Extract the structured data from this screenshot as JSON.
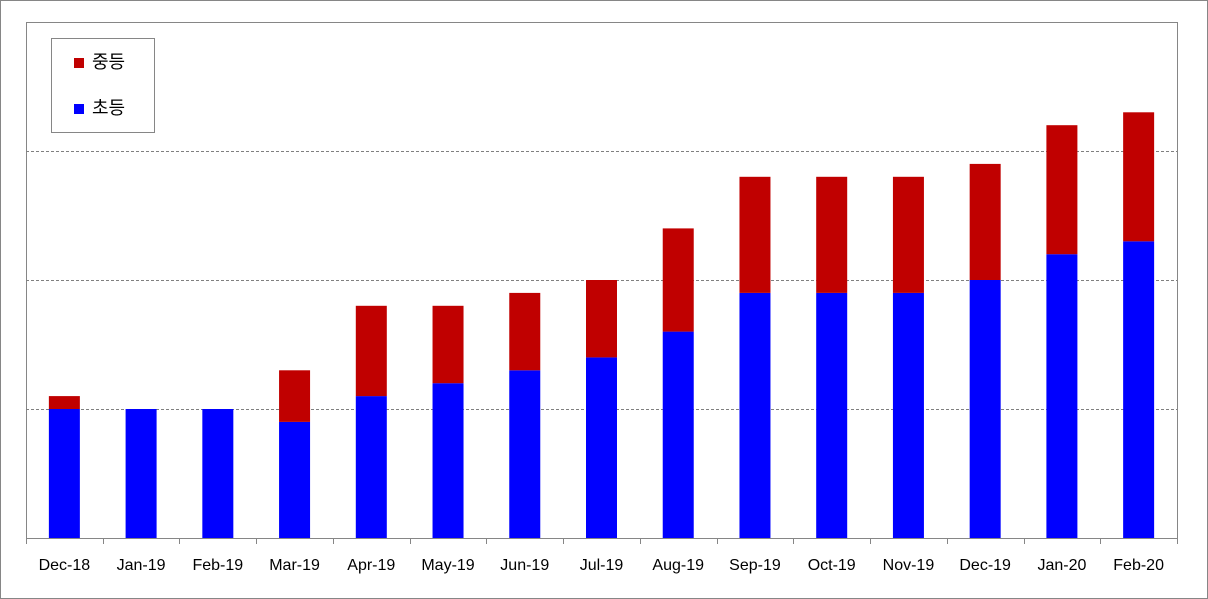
{
  "chart_data": {
    "type": "stacked-bar",
    "categories": [
      "Dec-18",
      "Jan-19",
      "Feb-19",
      "Mar-19",
      "Apr-19",
      "May-19",
      "Jun-19",
      "Jul-19",
      "Aug-19",
      "Sep-19",
      "Oct-19",
      "Nov-19",
      "Dec-19",
      "Jan-20",
      "Feb-20"
    ],
    "series": [
      {
        "name": "초등",
        "color": "#0000ff",
        "values": [
          10,
          10,
          10,
          9,
          11,
          12,
          13,
          14,
          16,
          19,
          19,
          19,
          20,
          22,
          23
        ]
      },
      {
        "name": "중등",
        "color": "#c00000",
        "values": [
          1,
          0,
          0,
          4,
          7,
          6,
          6,
          6,
          8,
          9,
          9,
          9,
          9,
          10,
          10
        ]
      }
    ],
    "ylim": [
      0,
      40
    ],
    "yticks": [
      10,
      20,
      30
    ],
    "grid": true,
    "legend": "top-left"
  }
}
